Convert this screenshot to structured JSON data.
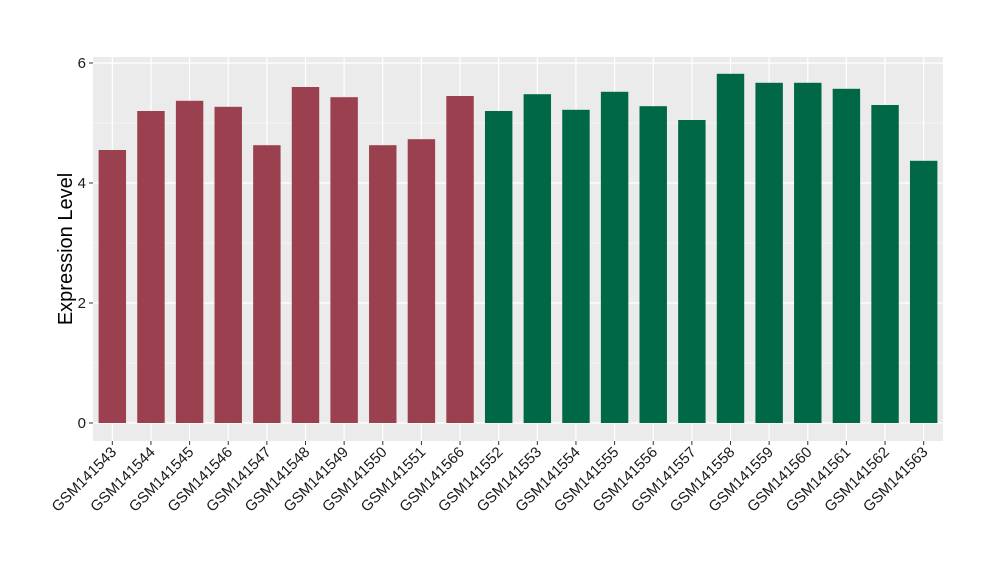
{
  "chart_data": {
    "type": "bar",
    "title": "",
    "xlabel": "",
    "ylabel": "Expression Level",
    "ylim": [
      0,
      6.0
    ],
    "yticks": [
      0,
      2,
      4,
      6
    ],
    "yticks_labels": [
      "0",
      "2",
      "4",
      "6"
    ],
    "grid": true,
    "legend": "none",
    "categories": [
      "GSM141543",
      "GSM141544",
      "GSM141545",
      "GSM141546",
      "GSM141547",
      "GSM141548",
      "GSM141549",
      "GSM141550",
      "GSM141551",
      "GSM141566",
      "GSM141552",
      "GSM141553",
      "GSM141554",
      "GSM141555",
      "GSM141556",
      "GSM141557",
      "GSM141558",
      "GSM141559",
      "GSM141560",
      "GSM141561",
      "GSM141562",
      "GSM141563"
    ],
    "values": [
      4.55,
      5.2,
      5.37,
      5.27,
      4.63,
      5.6,
      5.43,
      4.63,
      4.73,
      5.45,
      5.2,
      5.48,
      5.22,
      5.52,
      5.28,
      5.05,
      5.82,
      5.67,
      5.67,
      5.57,
      5.3,
      4.37
    ],
    "groups": [
      0,
      0,
      0,
      0,
      0,
      0,
      0,
      0,
      0,
      0,
      1,
      1,
      1,
      1,
      1,
      1,
      1,
      1,
      1,
      1,
      1,
      1
    ],
    "group_colors": [
      "#9a404f",
      "#006847"
    ],
    "panel_background": "#ebebeb",
    "grid_color": "#ffffff"
  }
}
